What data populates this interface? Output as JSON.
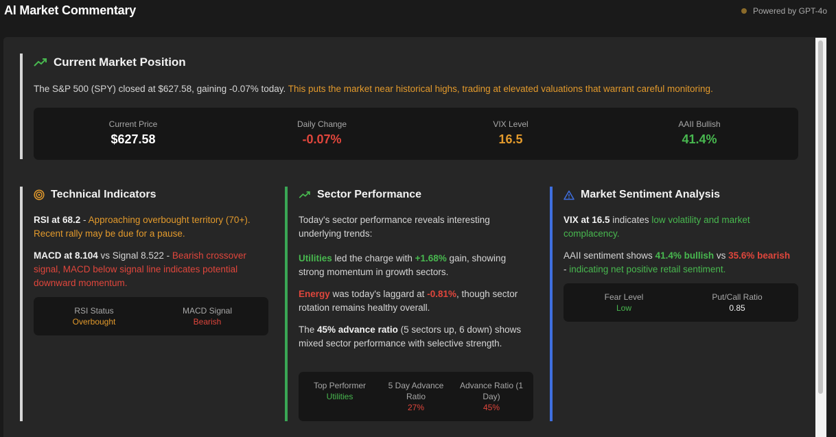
{
  "app": {
    "title": "AI Market Commentary",
    "powered_by": "Powered by GPT-4o"
  },
  "colors": {
    "orange": "#e39a2c",
    "red": "#e0463c",
    "green": "#48b84f",
    "blue_accent": "#3f6fe0",
    "green_accent": "#3aa655"
  },
  "current": {
    "title": "Current Market Position",
    "icon": "trending-up-icon",
    "summary_plain": "The S&P 500 (SPY) closed at $627.58, gaining -0.07% today. ",
    "summary_highlight": "This puts the market near historical highs, trading at elevated valuations that warrant careful monitoring.",
    "metrics": [
      {
        "label": "Current Price",
        "value": "$627.58"
      },
      {
        "label": "Daily Change",
        "value": "-0.07%"
      },
      {
        "label": "VIX Level",
        "value": "16.5"
      },
      {
        "label": "AAII Bullish",
        "value": "41.4%"
      }
    ]
  },
  "technical": {
    "title": "Technical Indicators",
    "icon": "target-icon",
    "rsi_strong": "RSI at 68.2",
    "rsi_sep": " - ",
    "rsi_text": "Approaching overbought territory (70+). Recent rally may be due for a pause.",
    "macd_strong": "MACD at 8.104",
    "macd_mid": " vs Signal 8.522 - ",
    "macd_text": "Bearish crossover signal, MACD below signal line indicates potential downward momentum.",
    "stats": [
      {
        "label": "RSI Status",
        "value": "Overbought"
      },
      {
        "label": "MACD Signal",
        "value": "Bearish"
      }
    ]
  },
  "sector": {
    "title": "Sector Performance",
    "icon": "trending-up-icon",
    "intro": "Today's sector performance reveals interesting underlying trends:",
    "leader_name": "Utilities",
    "leader_mid": " led the charge with ",
    "leader_value": "+1.68%",
    "leader_end": " gain, showing strong momentum in growth sectors.",
    "laggard_name": "Energy",
    "laggard_mid": " was today's laggard at ",
    "laggard_value": "-0.81%",
    "laggard_end": ", though sector rotation remains healthy overall.",
    "ratio_start": "The ",
    "ratio_strong": "45% advance ratio",
    "ratio_end": " (5 sectors up, 6 down) shows mixed sector performance with selective strength.",
    "stats": [
      {
        "label": "Top Performer",
        "value": "Utilities"
      },
      {
        "label": "5 Day Advance Ratio",
        "value": "27%"
      },
      {
        "label": "Advance Ratio (1 Day)",
        "value": "45%"
      }
    ]
  },
  "sentiment": {
    "title": "Market Sentiment Analysis",
    "icon": "warning-triangle-icon",
    "vix_strong": "VIX at 16.5",
    "vix_mid": " indicates ",
    "vix_text": "low volatility and market complacency.",
    "aaii_start": "AAII sentiment shows ",
    "aaii_bull": "41.4% bullish",
    "aaii_vs": " vs ",
    "aaii_bear": "35.6% bearish",
    "aaii_sep": " - ",
    "aaii_text": "indicating net positive retail sentiment.",
    "stats": [
      {
        "label": "Fear Level",
        "value": "Low"
      },
      {
        "label": "Put/Call Ratio",
        "value": "0.85"
      }
    ]
  }
}
